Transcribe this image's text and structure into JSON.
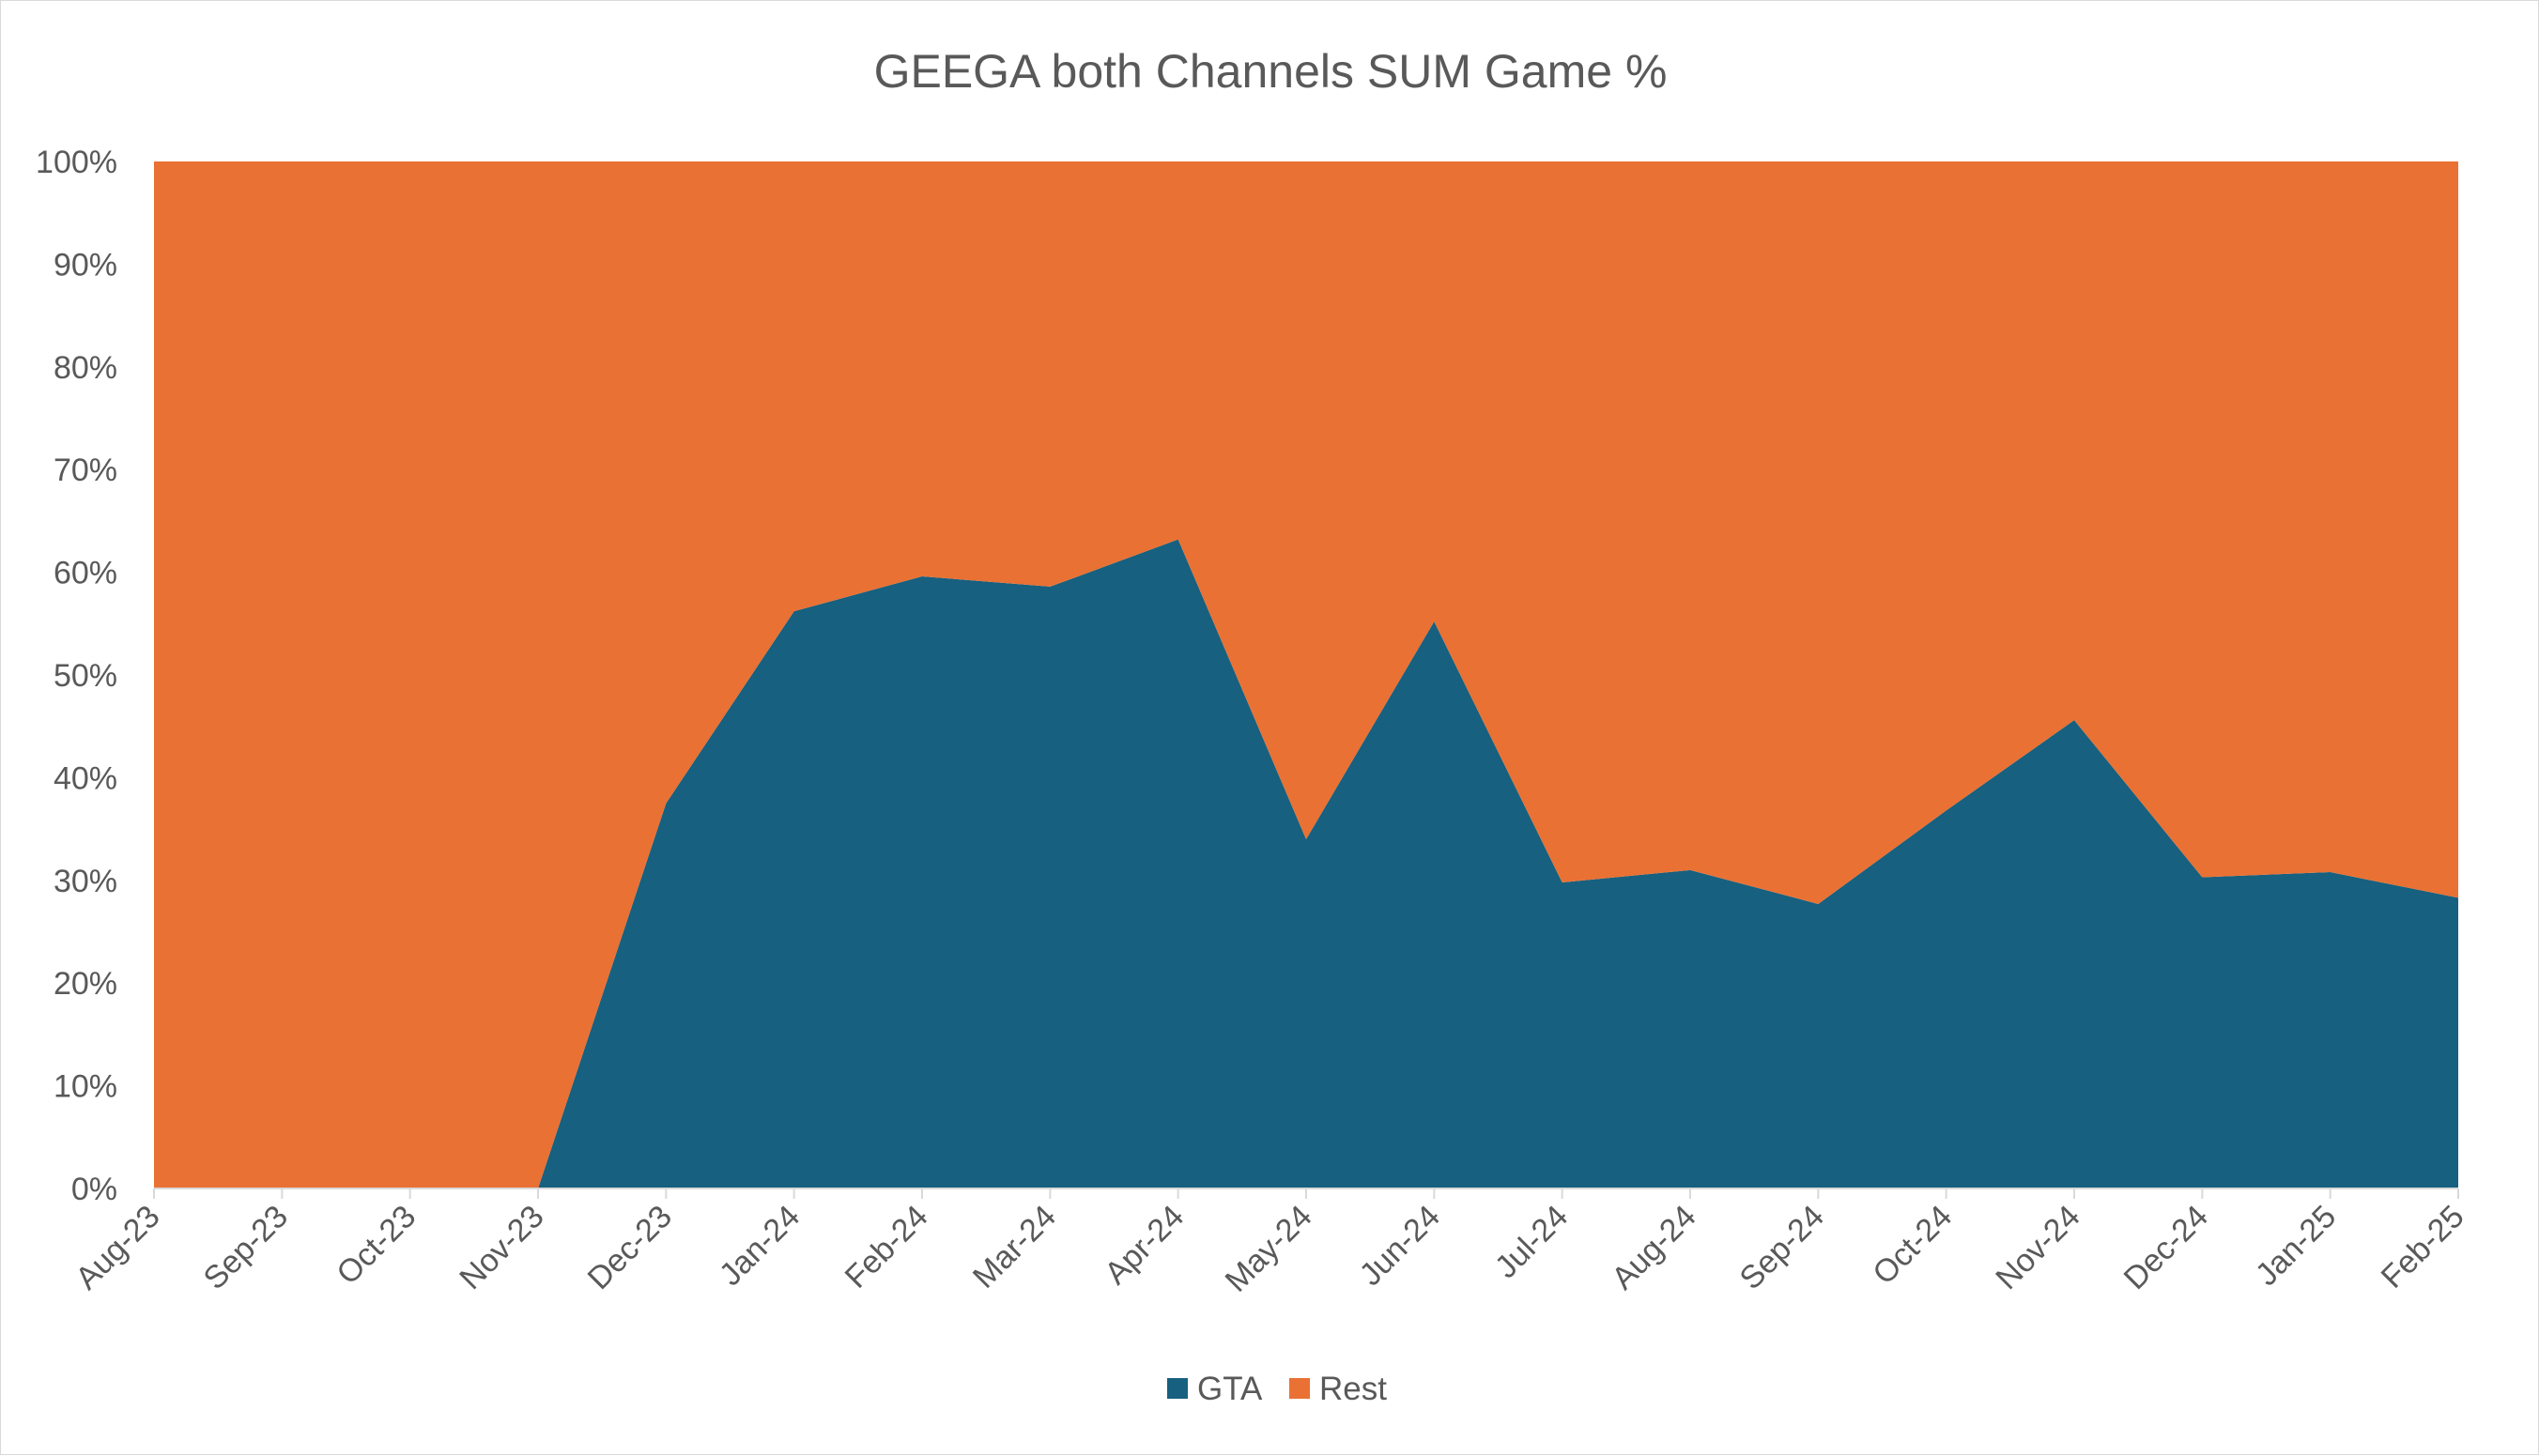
{
  "chart_data": {
    "type": "area",
    "stacked": true,
    "percent_stacked": true,
    "title": "GEEGA both Channels SUM Game %",
    "categories": [
      "Aug-23",
      "Sep-23",
      "Oct-23",
      "Nov-23",
      "Dec-23",
      "Jan-24",
      "Feb-24",
      "Mar-24",
      "Apr-24",
      "May-24",
      "Jun-24",
      "Jul-24",
      "Aug-24",
      "Sep-24",
      "Oct-24",
      "Nov-24",
      "Dec-24",
      "Jan-25",
      "Feb-25"
    ],
    "series": [
      {
        "name": "GTA",
        "color": "#17607f",
        "values": [
          0,
          0,
          0,
          0,
          37.5,
          56.2,
          59.6,
          58.6,
          63.2,
          34.0,
          55.2,
          29.8,
          31.0,
          27.7,
          36.8,
          45.6,
          30.3,
          30.8,
          28.3
        ]
      },
      {
        "name": "Rest",
        "color": "#e97133",
        "values": [
          100,
          100,
          100,
          100,
          62.5,
          43.8,
          40.4,
          41.4,
          36.8,
          66.0,
          44.8,
          70.2,
          69.0,
          72.3,
          63.2,
          54.4,
          69.7,
          69.2,
          71.7
        ]
      }
    ],
    "y_ticks": [
      "0%",
      "10%",
      "20%",
      "30%",
      "40%",
      "50%",
      "60%",
      "70%",
      "80%",
      "90%",
      "100%"
    ],
    "ylim": [
      0,
      100
    ],
    "grid": false,
    "legend_position": "bottom"
  }
}
